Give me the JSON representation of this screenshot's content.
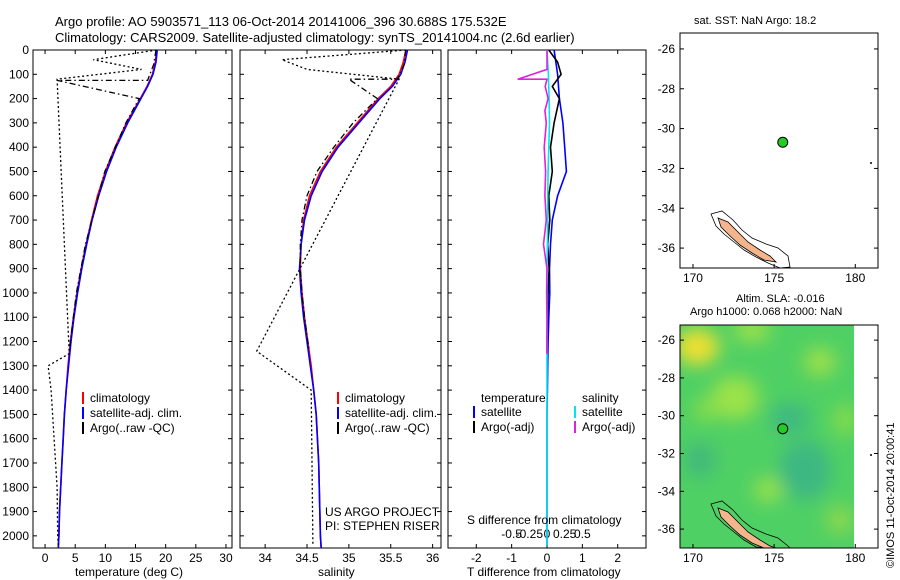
{
  "header": {
    "line1": "Argo profile: AO 5903571_113 06-Oct-2014 20141006_396 30.688S 175.532E",
    "line2": "Climatology: CARS2009. Satellite-adjusted climatology: synTS_20141004.nc (2.6d earlier)"
  },
  "colors": {
    "climatology": "#ff0000",
    "satellite": "#0000ff",
    "argo": "#000000",
    "sal_satellite": "#00e5ee",
    "sal_argo": "#e020e0",
    "land": "#f4b48c",
    "marker": "#22cc22"
  },
  "chart_data": [
    {
      "type": "line",
      "panel": "temperature",
      "xlabel": "temperature (deg C)",
      "xlim": [
        -2,
        31
      ],
      "xticks": [
        0,
        5,
        10,
        15,
        20,
        25,
        30
      ],
      "xtick_labels": [
        "0",
        "5",
        "10",
        "15",
        "20",
        "25",
        "30"
      ],
      "ylim": [
        2050,
        0
      ],
      "yticks": [
        0,
        100,
        200,
        300,
        400,
        500,
        600,
        700,
        800,
        900,
        1000,
        1100,
        1200,
        1300,
        1400,
        1500,
        1600,
        1700,
        1800,
        1900,
        2000
      ],
      "ytick_labels": [
        "0",
        "100",
        "200",
        "300",
        "400",
        "500",
        "600",
        "700",
        "800",
        "900",
        "1000",
        "1100",
        "1200",
        "1300",
        "1400",
        "1500",
        "1600",
        "1700",
        "1800",
        "1900",
        "2000"
      ],
      "legend": [
        "climatology",
        "satellite-adj. clim.",
        "Argo(..raw -QC)"
      ],
      "legend_location": "bottom-right",
      "series": [
        {
          "name": "climatology",
          "style": "solid",
          "color": "#ff0000",
          "depth": [
            0,
            50,
            100,
            150,
            200,
            300,
            400,
            500,
            600,
            700,
            800,
            900,
            1000,
            1100,
            1200,
            1300,
            1400,
            1500,
            1600,
            1700,
            1800,
            1900,
            2000,
            2050
          ],
          "values": [
            18.5,
            18.3,
            17.8,
            16.9,
            15.8,
            13.5,
            11.6,
            10.0,
            8.7,
            7.7,
            6.8,
            6.0,
            5.3,
            4.7,
            4.2,
            3.8,
            3.5,
            3.2,
            3.0,
            2.8,
            2.6,
            2.4,
            2.3,
            2.2
          ]
        },
        {
          "name": "satellite-adj. clim.",
          "style": "solid",
          "color": "#0000ff",
          "depth": [
            0,
            50,
            100,
            150,
            200,
            300,
            400,
            500,
            600,
            700,
            800,
            900,
            1000,
            1100,
            1200,
            1300,
            1400,
            1500,
            1600,
            1700,
            1800,
            1900,
            2000,
            2050
          ],
          "values": [
            18.6,
            18.4,
            17.9,
            17.0,
            15.9,
            13.7,
            11.8,
            10.2,
            8.9,
            7.8,
            6.9,
            6.1,
            5.4,
            4.8,
            4.3,
            3.9,
            3.5,
            3.2,
            3.0,
            2.8,
            2.6,
            2.4,
            2.3,
            2.2
          ]
        },
        {
          "name": "Argo(..raw -QC)",
          "style": "dashdot",
          "color": "#000000",
          "depth": [
            0,
            60,
            125,
            125,
            200,
            300,
            500,
            800,
            1000,
            1200,
            1250
          ],
          "values": [
            18.4,
            18.0,
            17.0,
            2.0,
            15.6,
            13.4,
            9.9,
            6.7,
            5.2,
            4.2,
            4.0
          ]
        },
        {
          "name": "Argo raw",
          "style": "dotted",
          "color": "#000000",
          "depth": [
            0,
            40,
            80,
            120,
            1250,
            1300,
            1400,
            1600,
            1800,
            2000,
            2040
          ],
          "values": [
            18.5,
            8.0,
            16.0,
            2.0,
            4.0,
            0.5,
            1.0,
            1.5,
            2.0,
            2.1,
            2.2
          ]
        }
      ]
    },
    {
      "type": "line",
      "panel": "salinity",
      "xlabel": "salinity",
      "xlim": [
        33.7,
        36.1
      ],
      "xticks": [
        34,
        34.5,
        35,
        35.5,
        36
      ],
      "xtick_labels": [
        "34",
        "34.5",
        "35",
        "35.5",
        "36"
      ],
      "ylim": [
        2050,
        0
      ],
      "legend": [
        "climatology",
        "satellite-adj. clim.",
        "Argo(..raw -QC)"
      ],
      "legend_location": "bottom-right",
      "annotation": [
        "US ARGO PROJECT",
        "PI: STEPHEN RISER"
      ],
      "series": [
        {
          "name": "climatology",
          "style": "solid",
          "color": "#ff0000",
          "depth": [
            0,
            50,
            100,
            150,
            200,
            300,
            400,
            500,
            600,
            700,
            800,
            900,
            1000,
            1100,
            1200,
            1300,
            1400,
            1500,
            1700,
            2000,
            2050
          ],
          "values": [
            35.68,
            35.65,
            35.6,
            35.5,
            35.35,
            35.1,
            34.85,
            34.66,
            34.53,
            34.46,
            34.43,
            34.42,
            34.44,
            34.47,
            34.51,
            34.55,
            34.58,
            34.61,
            34.64,
            34.66,
            34.67
          ]
        },
        {
          "name": "satellite-adj. clim.",
          "style": "solid",
          "color": "#0000ff",
          "depth": [
            0,
            50,
            100,
            150,
            200,
            300,
            400,
            500,
            600,
            700,
            800,
            900,
            1000,
            1100,
            1200,
            1300,
            1400,
            1500,
            1700,
            2000,
            2050
          ],
          "values": [
            35.7,
            35.67,
            35.62,
            35.52,
            35.37,
            35.12,
            34.87,
            34.68,
            34.55,
            34.47,
            34.43,
            34.41,
            34.43,
            34.46,
            34.5,
            34.54,
            34.58,
            34.61,
            34.64,
            34.66,
            34.67
          ]
        },
        {
          "name": "Argo(..raw -QC)",
          "style": "dashdot",
          "color": "#000000",
          "depth": [
            0,
            60,
            120,
            120,
            200,
            300,
            400,
            500,
            600,
            700,
            800,
            900,
            1000,
            1100,
            1200,
            1240
          ],
          "values": [
            35.68,
            35.66,
            35.58,
            35.0,
            35.34,
            35.05,
            34.82,
            34.62,
            34.5,
            34.44,
            34.42,
            34.42,
            34.44,
            34.47,
            34.51,
            34.53
          ]
        },
        {
          "name": "Argo raw",
          "style": "dotted",
          "color": "#000000",
          "depth": [
            0,
            40,
            80,
            120,
            1240,
            1400,
            1700,
            2040
          ],
          "values": [
            35.68,
            34.2,
            34.5,
            35.6,
            33.9,
            34.55,
            34.56,
            34.57
          ]
        }
      ]
    },
    {
      "type": "line",
      "panel": "difference",
      "xlabel": "T difference from climatology",
      "xlim": [
        -2.8,
        2.8
      ],
      "xticks": [
        -2,
        -1,
        0,
        1,
        2
      ],
      "xtick_labels": [
        "-2",
        "-1",
        "0",
        "1",
        "2"
      ],
      "top_axis_label": "S difference from climatology",
      "top_ticks": [
        -0.5,
        -0.25,
        0,
        0.25,
        0.5
      ],
      "top_tick_labels": [
        "-0.5",
        "-0.25",
        "0",
        "0.25",
        "0.5"
      ],
      "ylim": [
        2050,
        0
      ],
      "legend": {
        "temperature": [
          "satellite",
          "Argo(-adj)"
        ],
        "salinity": [
          "satellite",
          "Argo(-adj)"
        ]
      },
      "legend_titles": [
        "temperature",
        "salinity"
      ],
      "legend_location": "center",
      "series": [
        {
          "name": "temperature satellite",
          "style": "solid",
          "color": "#0000ff",
          "depth": [
            0,
            100,
            200,
            300,
            400,
            500,
            600,
            700,
            800,
            900,
            1000,
            1100,
            1200,
            1300,
            1400,
            1500,
            1700,
            2000,
            2040
          ],
          "values": [
            0.2,
            0.3,
            0.35,
            0.45,
            0.5,
            0.55,
            0.3,
            0.15,
            0.1,
            0.07,
            0.08,
            0.05,
            0.03,
            0.02,
            0.01,
            0.0,
            0.0,
            0.0,
            0.0
          ]
        },
        {
          "name": "temperature Argo(-adj)",
          "style": "solid",
          "color": "#000000",
          "depth": [
            0,
            50,
            100,
            150,
            200,
            300,
            400,
            500,
            600,
            700,
            800,
            900,
            1000,
            1100,
            1200,
            1250
          ],
          "values": [
            0.05,
            0.3,
            0.4,
            0.15,
            0.35,
            0.2,
            0.1,
            0.15,
            0.05,
            0.08,
            0.02,
            0.06,
            0.03,
            0.01,
            0.0,
            0.0
          ]
        },
        {
          "name": "salinity satellite",
          "style": "solid",
          "color": "#00e5ee",
          "depth": [
            0,
            100,
            200,
            300,
            400,
            500,
            600,
            700,
            800,
            900,
            1000,
            1200,
            1500,
            2000,
            2040
          ],
          "values": [
            0.0,
            0.04,
            0.06,
            0.07,
            0.05,
            0.03,
            0.02,
            0.02,
            0.01,
            0.0,
            0.0,
            0.0,
            0.0,
            0.0,
            0.0
          ]
        },
        {
          "name": "salinity Argo(-adj)",
          "style": "solid",
          "color": "#e020e0",
          "depth": [
            0,
            80,
            120,
            120,
            150,
            200,
            250,
            300,
            400,
            500,
            600,
            700,
            800,
            900,
            1000,
            1100,
            1200,
            1250
          ],
          "values": [
            0.0,
            0.0,
            -0.83,
            0.0,
            -0.05,
            0.03,
            -0.06,
            -0.02,
            -0.08,
            -0.04,
            -0.06,
            -0.02,
            -0.1,
            0.0,
            -0.01,
            0.0,
            0.0,
            0.0
          ]
        }
      ]
    },
    {
      "type": "scatter",
      "panel": "map_sst",
      "title": "sat. SST: NaN Argo: 18.2",
      "xlim": [
        169.2,
        181.4
      ],
      "ylim": [
        -37.0,
        -25.2
      ],
      "xticks": [
        170,
        175,
        180
      ],
      "xtick_labels": [
        "170",
        "175",
        "180"
      ],
      "yticks": [
        -26,
        -28,
        -30,
        -32,
        -34,
        -36
      ],
      "ytick_labels": [
        "-26",
        "-28",
        "-30",
        "-32",
        "-34",
        "-36"
      ],
      "points": [
        {
          "lon": 175.532,
          "lat": -30.688
        }
      ]
    },
    {
      "type": "heatmap",
      "panel": "map_sla",
      "title_lines": [
        "Altim. SLA: -0.016",
        "Argo h1000: 0.068 h2000: NaN"
      ],
      "xlim": [
        169.2,
        181.4
      ],
      "ylim": [
        -37.0,
        -25.2
      ],
      "field_lon_max": 180.0,
      "xticks": [
        170,
        175,
        180
      ],
      "xtick_labels": [
        "170",
        "175",
        "180"
      ],
      "yticks": [
        -26,
        -28,
        -30,
        -32,
        -34,
        -36
      ],
      "ytick_labels": [
        "-26",
        "-28",
        "-30",
        "-32",
        "-34",
        "-36"
      ],
      "points": [
        {
          "lon": 175.532,
          "lat": -30.688
        }
      ],
      "side_label": "©IMOS 11-Oct-2014 20:00:41"
    }
  ]
}
